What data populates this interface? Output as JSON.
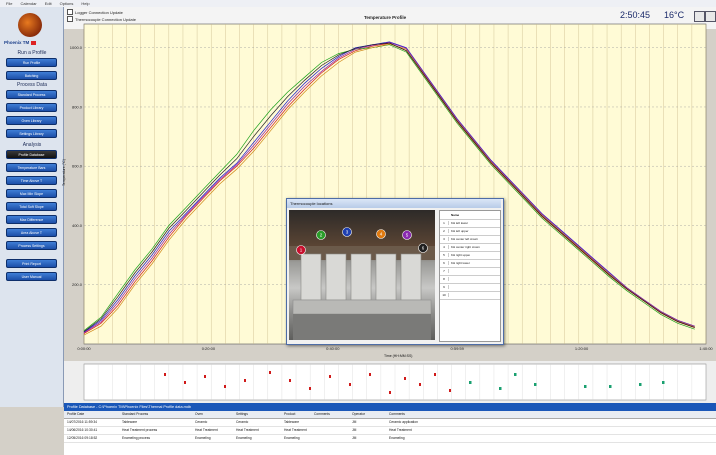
{
  "menu": [
    "File",
    "Calendar",
    "Edit",
    "Options",
    "Help"
  ],
  "sidebar": {
    "brand": "Phoenix TM",
    "sections": [
      {
        "title": "Run a Profile",
        "buttons": [
          "Run Profile",
          "Batching"
        ]
      },
      {
        "title": "Process Data",
        "buttons": [
          "Standard Process",
          "Product Library",
          "Oven Library",
          "Settings Library"
        ]
      },
      {
        "title": "Analysis",
        "buttons": [
          "Profile Database",
          "Temperature Bars",
          "Time Above T",
          "Max Min Slope",
          "Total Soft Slope",
          "Max Difference",
          "Area Above T",
          "Process Settings"
        ]
      }
    ],
    "extra_buttons": [
      "Print Report",
      "User Manual"
    ]
  },
  "header": {
    "checks": [
      "Logger Connection Update",
      "Thermocouple Connection Update"
    ],
    "clock": "2:50:45",
    "temp": "16°C"
  },
  "chart_data": {
    "type": "line",
    "title": "Temperature Profile",
    "xlabel": "Time (HH:MM:SS)",
    "ylabel": "Temperature (°C)",
    "yticks": [
      1000,
      800,
      600,
      400,
      200
    ],
    "xticks": [
      "0:00:00",
      "0:20:00",
      "0:40:00",
      "0:59:59",
      "1:20:00",
      "1:40:00"
    ],
    "xlim": [
      0,
      1.8333
    ],
    "ylim": [
      0,
      1080
    ],
    "series": [
      {
        "color": "#1a1ad0",
        "x": [
          0,
          0.05,
          0.1,
          0.15,
          0.2,
          0.25,
          0.3,
          0.35,
          0.4,
          0.45,
          0.5,
          0.55,
          0.6,
          0.65,
          0.7,
          0.75,
          0.8,
          0.85,
          0.9,
          0.95,
          1.0,
          1.05,
          1.1,
          1.15,
          1.2,
          1.25,
          1.3,
          1.35,
          1.4,
          1.45,
          1.5,
          1.55,
          1.6,
          1.65,
          1.7,
          1.75,
          1.8
        ],
        "y": [
          40,
          80,
          150,
          230,
          300,
          380,
          440,
          500,
          560,
          610,
          680,
          750,
          820,
          880,
          930,
          970,
          1000,
          1010,
          1020,
          1000,
          920,
          840,
          760,
          690,
          620,
          560,
          500,
          440,
          390,
          340,
          290,
          240,
          190,
          150,
          110,
          80,
          60
        ]
      },
      {
        "color": "#d01a1a",
        "x": [
          0,
          0.05,
          0.1,
          0.15,
          0.2,
          0.25,
          0.3,
          0.35,
          0.4,
          0.45,
          0.5,
          0.55,
          0.6,
          0.65,
          0.7,
          0.75,
          0.8,
          0.85,
          0.9,
          0.95,
          1.0,
          1.05,
          1.1,
          1.15,
          1.2,
          1.25,
          1.3,
          1.35,
          1.4,
          1.45,
          1.5,
          1.55,
          1.6,
          1.65,
          1.7,
          1.75,
          1.8
        ],
        "y": [
          35,
          70,
          130,
          210,
          280,
          360,
          430,
          490,
          550,
          600,
          660,
          730,
          800,
          860,
          915,
          960,
          990,
          1005,
          1015,
          990,
          910,
          830,
          750,
          680,
          610,
          550,
          490,
          430,
          380,
          330,
          280,
          230,
          185,
          145,
          105,
          75,
          55
        ]
      },
      {
        "color": "#1aa01a",
        "x": [
          0,
          0.05,
          0.1,
          0.15,
          0.2,
          0.25,
          0.3,
          0.35,
          0.4,
          0.45,
          0.5,
          0.55,
          0.6,
          0.65,
          0.7,
          0.75,
          0.8,
          0.85,
          0.9,
          0.95,
          1.0,
          1.05,
          1.1,
          1.15,
          1.2,
          1.25,
          1.3,
          1.35,
          1.4,
          1.45,
          1.5,
          1.55,
          1.6,
          1.65,
          1.7,
          1.75,
          1.8
        ],
        "y": [
          45,
          90,
          170,
          250,
          320,
          400,
          460,
          520,
          580,
          640,
          720,
          790,
          850,
          900,
          950,
          980,
          995,
          1000,
          1010,
          985,
          905,
          825,
          745,
          675,
          605,
          545,
          485,
          425,
          375,
          325,
          275,
          225,
          180,
          140,
          100,
          70,
          50
        ]
      },
      {
        "color": "#d08a1a",
        "x": [
          0,
          0.05,
          0.1,
          0.15,
          0.2,
          0.25,
          0.3,
          0.35,
          0.4,
          0.45,
          0.5,
          0.55,
          0.6,
          0.65,
          0.7,
          0.75,
          0.8,
          0.85,
          0.9,
          0.95,
          1.0,
          1.05,
          1.1,
          1.15,
          1.2,
          1.25,
          1.3,
          1.35,
          1.4,
          1.45,
          1.5,
          1.55,
          1.6,
          1.65,
          1.7,
          1.75,
          1.8
        ],
        "y": [
          30,
          60,
          120,
          200,
          270,
          350,
          420,
          480,
          540,
          590,
          650,
          720,
          790,
          850,
          905,
          950,
          985,
          1000,
          1012,
          995,
          915,
          835,
          755,
          685,
          615,
          555,
          495,
          435,
          385,
          335,
          285,
          235,
          188,
          148,
          108,
          78,
          58
        ]
      },
      {
        "color": "#8a1ab0",
        "x": [
          0,
          0.05,
          0.1,
          0.15,
          0.2,
          0.25,
          0.3,
          0.35,
          0.4,
          0.45,
          0.5,
          0.55,
          0.6,
          0.65,
          0.7,
          0.75,
          0.8,
          0.85,
          0.9,
          0.95,
          1.0,
          1.05,
          1.1,
          1.15,
          1.2,
          1.25,
          1.3,
          1.35,
          1.4,
          1.45,
          1.5,
          1.55,
          1.6,
          1.65,
          1.7,
          1.75,
          1.8
        ],
        "y": [
          38,
          75,
          140,
          220,
          290,
          370,
          435,
          495,
          555,
          605,
          670,
          740,
          810,
          870,
          920,
          965,
          995,
          1008,
          1018,
          998,
          918,
          838,
          758,
          688,
          618,
          558,
          498,
          438,
          388,
          338,
          288,
          238,
          190,
          150,
          110,
          80,
          60
        ]
      },
      {
        "color": "#222222",
        "x": [
          0,
          0.05,
          0.1,
          0.15,
          0.2,
          0.25,
          0.3,
          0.35,
          0.4,
          0.45,
          0.5,
          0.55,
          0.6,
          0.65,
          0.7,
          0.75,
          0.8,
          0.85,
          0.9,
          0.95,
          1.0,
          1.05,
          1.1,
          1.15,
          1.2,
          1.25,
          1.3,
          1.35,
          1.4,
          1.45,
          1.5,
          1.55,
          1.6,
          1.65,
          1.7,
          1.75,
          1.8
        ],
        "y": [
          42,
          85,
          160,
          240,
          310,
          390,
          450,
          510,
          570,
          625,
          700,
          770,
          835,
          890,
          940,
          975,
          998,
          1010,
          1016,
          990,
          912,
          832,
          752,
          682,
          612,
          552,
          492,
          432,
          382,
          332,
          282,
          232,
          186,
          146,
          106,
          76,
          56
        ]
      }
    ]
  },
  "dialog": {
    "title": "Thermocouple locations",
    "name_header": "Name",
    "rows": [
      {
        "n": "1",
        "label": "KH left lower"
      },
      {
        "n": "2",
        "label": "KH left upper"
      },
      {
        "n": "3",
        "label": "KH center left crown"
      },
      {
        "n": "4",
        "label": "KH center right crown"
      },
      {
        "n": "5",
        "label": "KH right upper"
      },
      {
        "n": "6",
        "label": "KH right lower"
      },
      {
        "n": "7",
        "label": ""
      },
      {
        "n": "8",
        "label": ""
      },
      {
        "n": "9",
        "label": ""
      },
      {
        "n": "10",
        "label": ""
      }
    ],
    "markers": [
      {
        "n": "1",
        "color": "#c8102e"
      },
      {
        "n": "2",
        "color": "#2a9d2a"
      },
      {
        "n": "3",
        "color": "#1e3fb0"
      },
      {
        "n": "4",
        "color": "#e07a10"
      },
      {
        "n": "5",
        "color": "#8a2bb0"
      },
      {
        "n": "6",
        "color": "#202020"
      }
    ]
  },
  "bottom": {
    "title": "Profile Database - C:\\Phoenix TM\\Phoenix Files\\Thermal Profile data.mdb",
    "columns": [
      "Profile Date",
      "Standard Process",
      "Oven",
      "Settings",
      "Product",
      "Comments",
      "Operator",
      "Comments"
    ],
    "rows": [
      [
        "14/07/2016 11:59:34",
        "Tableware",
        "Ceramic",
        "Ceramic",
        "Tableware",
        "",
        "JM",
        "Ceramic application"
      ],
      [
        "14/06/2016 10:30:41",
        "Heat Treatment process",
        "Heat Treatment",
        "Heat Treatment",
        "Heat Treatment",
        "",
        "JM",
        "Heat Treatment"
      ],
      [
        "12/05/2016 09:18:52",
        "Enameling process",
        "Enameling",
        "Enameling",
        "Enameling",
        "",
        "JM",
        "Enameling"
      ]
    ]
  }
}
